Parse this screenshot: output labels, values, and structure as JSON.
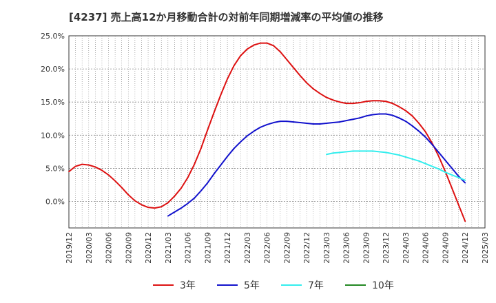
{
  "chart_data": {
    "type": "line",
    "title": "[4237]  売上高12か月移動合計の対前年同期増減率の平均値の推移",
    "xlabel": "",
    "ylabel": "",
    "x_ticks": [
      "2019/12",
      "2020/03",
      "2020/06",
      "2020/09",
      "2020/12",
      "2021/03",
      "2021/06",
      "2021/09",
      "2021/12",
      "2022/03",
      "2022/06",
      "2022/09",
      "2022/12",
      "2023/03",
      "2023/06",
      "2023/09",
      "2023/12",
      "2024/03",
      "2024/06",
      "2024/09",
      "2024/12",
      "2025/03"
    ],
    "y_ticks": [
      "25.0%",
      "20.0%",
      "15.0%",
      "10.0%",
      "5.0%",
      "0.0%"
    ],
    "ylim": [
      -4.0,
      25.0
    ],
    "grid": true,
    "legend_position": "bottom",
    "series": [
      {
        "name": "3年",
        "color": "#dd1111",
        "x": [
          "2019/12",
          "2020/01",
          "2020/02",
          "2020/03",
          "2020/04",
          "2020/05",
          "2020/06",
          "2020/07",
          "2020/08",
          "2020/09",
          "2020/10",
          "2020/11",
          "2020/12",
          "2021/01",
          "2021/02",
          "2021/03",
          "2021/04",
          "2021/05",
          "2021/06",
          "2021/07",
          "2021/08",
          "2021/09",
          "2021/10",
          "2021/11",
          "2021/12",
          "2022/01",
          "2022/02",
          "2022/03",
          "2022/04",
          "2022/05",
          "2022/06",
          "2022/07",
          "2022/08",
          "2022/09",
          "2022/10",
          "2022/11",
          "2022/12",
          "2023/01",
          "2023/02",
          "2023/03",
          "2023/04",
          "2023/05",
          "2023/06",
          "2023/07",
          "2023/08",
          "2023/09",
          "2023/10",
          "2023/11",
          "2023/12",
          "2024/01",
          "2024/02",
          "2024/03",
          "2024/04",
          "2024/05",
          "2024/06",
          "2024/07",
          "2024/08",
          "2024/09",
          "2024/10",
          "2024/11",
          "2024/12"
        ],
        "values": [
          4.5,
          5.3,
          5.6,
          5.5,
          5.2,
          4.7,
          4.0,
          3.1,
          2.1,
          1.0,
          0.1,
          -0.5,
          -0.9,
          -1.0,
          -0.8,
          -0.2,
          0.8,
          2.0,
          3.6,
          5.6,
          8.0,
          10.8,
          13.5,
          16.1,
          18.5,
          20.5,
          22.0,
          23.0,
          23.6,
          23.9,
          23.9,
          23.5,
          22.6,
          21.4,
          20.2,
          19.0,
          17.9,
          17.0,
          16.3,
          15.7,
          15.3,
          15.0,
          14.8,
          14.8,
          14.9,
          15.1,
          15.2,
          15.2,
          15.1,
          14.8,
          14.3,
          13.7,
          12.9,
          11.8,
          10.5,
          8.8,
          6.8,
          4.5,
          2.0,
          -0.5,
          -3.0
        ]
      },
      {
        "name": "5年",
        "color": "#1111cc",
        "x": [
          "2021/03",
          "2021/04",
          "2021/05",
          "2021/06",
          "2021/07",
          "2021/08",
          "2021/09",
          "2021/10",
          "2021/11",
          "2021/12",
          "2022/01",
          "2022/02",
          "2022/03",
          "2022/04",
          "2022/05",
          "2022/06",
          "2022/07",
          "2022/08",
          "2022/09",
          "2022/10",
          "2022/11",
          "2022/12",
          "2023/01",
          "2023/02",
          "2023/03",
          "2023/04",
          "2023/05",
          "2023/06",
          "2023/07",
          "2023/08",
          "2023/09",
          "2023/10",
          "2023/11",
          "2023/12",
          "2024/01",
          "2024/02",
          "2024/03",
          "2024/04",
          "2024/05",
          "2024/06",
          "2024/07",
          "2024/08",
          "2024/09",
          "2024/10",
          "2024/11",
          "2024/12"
        ],
        "values": [
          -2.2,
          -1.6,
          -1.0,
          -0.3,
          0.5,
          1.6,
          2.8,
          4.2,
          5.5,
          6.8,
          8.0,
          9.0,
          9.9,
          10.6,
          11.2,
          11.6,
          11.9,
          12.1,
          12.1,
          12.0,
          11.9,
          11.8,
          11.7,
          11.7,
          11.8,
          11.9,
          12.0,
          12.2,
          12.4,
          12.6,
          12.9,
          13.1,
          13.2,
          13.2,
          13.0,
          12.6,
          12.1,
          11.4,
          10.6,
          9.7,
          8.6,
          7.4,
          6.2,
          5.0,
          3.8,
          2.8
        ]
      },
      {
        "name": "7年",
        "color": "#33eeee",
        "x": [
          "2023/03",
          "2023/04",
          "2023/05",
          "2023/06",
          "2023/07",
          "2023/08",
          "2023/09",
          "2023/10",
          "2023/11",
          "2023/12",
          "2024/01",
          "2024/02",
          "2024/03",
          "2024/04",
          "2024/05",
          "2024/06",
          "2024/07",
          "2024/08",
          "2024/09",
          "2024/10",
          "2024/11",
          "2024/12"
        ],
        "values": [
          7.1,
          7.3,
          7.4,
          7.5,
          7.6,
          7.6,
          7.6,
          7.6,
          7.5,
          7.4,
          7.2,
          7.0,
          6.7,
          6.4,
          6.1,
          5.7,
          5.3,
          4.9,
          4.4,
          4.0,
          3.6,
          3.2
        ]
      },
      {
        "name": "10年",
        "color": "#228822",
        "x": [],
        "values": []
      }
    ]
  }
}
